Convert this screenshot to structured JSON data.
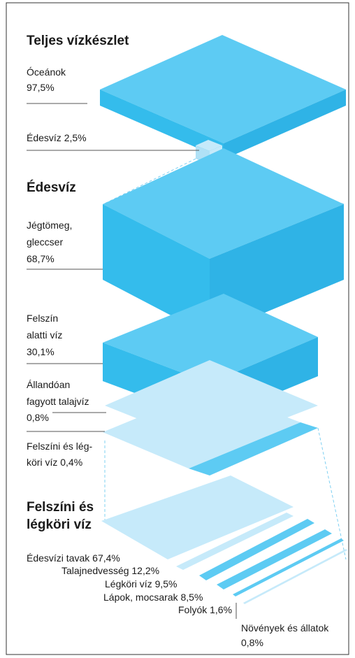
{
  "total": {
    "title": "Teljes vízkészlet",
    "oceans": [
      "Óceánok",
      "97,5%"
    ],
    "fresh": "Édesvíz 2,5%"
  },
  "freshwater": {
    "title": "Édesvíz",
    "ice": [
      "Jégtömeg,",
      "gleccser",
      "68,7%"
    ],
    "ground": [
      "Felszín",
      "alatti víz",
      "30,1%"
    ],
    "permafrost": [
      "Állandóan",
      "fagyott talajvíz",
      "0,8%"
    ],
    "surface": [
      "Felszíni és lég-",
      "köri víz 0,4%"
    ]
  },
  "surface": {
    "title": [
      "Felszíni és",
      "légköri víz"
    ],
    "items": [
      "Édesvízi tavak 67,4%",
      "Talajnedvesség 12,2%",
      "Légköri víz 9,5%",
      "Lápok, mocsarak 8,5%",
      "Folyók 1,6%"
    ],
    "living": [
      "Növények és állatok",
      "0,8%"
    ]
  }
}
